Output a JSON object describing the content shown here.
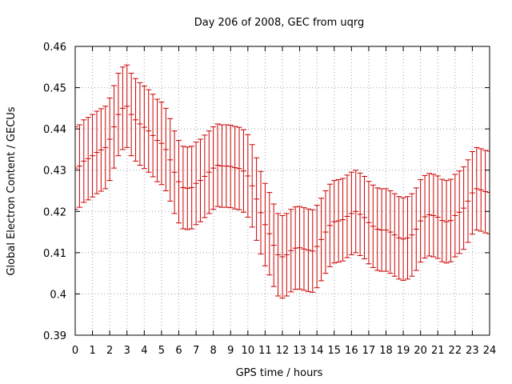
{
  "chart_data": {
    "type": "scatter",
    "title": "Day 206 of 2008, GEC from uqrg",
    "xlabel": "GPS time / hours",
    "ylabel": "Global Electron Content / GECUs",
    "xlim": [
      0,
      24
    ],
    "ylim": [
      0.39,
      0.46
    ],
    "xticks": [
      0,
      1,
      2,
      3,
      4,
      5,
      6,
      7,
      8,
      9,
      10,
      11,
      12,
      13,
      14,
      15,
      16,
      17,
      18,
      19,
      20,
      21,
      22,
      23,
      24
    ],
    "yticks": [
      0.39,
      0.4,
      0.41,
      0.42,
      0.43,
      0.44,
      0.45,
      0.46
    ],
    "ytick_labels": [
      "0.39",
      "0.4",
      "0.41",
      "0.42",
      "0.43",
      "0.44",
      "0.45",
      "0.46"
    ],
    "grid": true,
    "error_bar": 0.01,
    "color": "#cc0000",
    "series": [
      {
        "x": [
          0,
          0.25,
          0.5,
          0.75,
          1,
          1.25,
          1.5,
          1.75,
          2,
          2.25,
          2.5,
          2.75,
          3,
          3.25,
          3.5,
          3.75,
          4,
          4.25,
          4.5,
          4.75,
          5,
          5.25,
          5.5,
          5.75,
          6,
          6.25,
          6.5,
          6.75,
          7,
          7.25,
          7.5,
          7.75,
          8,
          8.25,
          8.5,
          8.75,
          9,
          9.25,
          9.5,
          9.75,
          10,
          10.25,
          10.5,
          10.75,
          11,
          11.25,
          11.5,
          11.75,
          12,
          12.25,
          12.5,
          12.75,
          13,
          13.25,
          13.5,
          13.75,
          14,
          14.25,
          14.5,
          14.75,
          15,
          15.25,
          15.5,
          15.75,
          16,
          16.25,
          16.5,
          16.75,
          17,
          17.25,
          17.5,
          17.75,
          18,
          18.25,
          18.5,
          18.75,
          19,
          19.25,
          19.5,
          19.75,
          20,
          20.25,
          20.5,
          20.75,
          21,
          21.25,
          21.5,
          21.75,
          22,
          22.25,
          22.5,
          22.75,
          23,
          23.25,
          23.5,
          23.75,
          24
        ],
        "y": [
          0.4305,
          0.431,
          0.4322,
          0.4328,
          0.4335,
          0.4343,
          0.4349,
          0.4355,
          0.4375,
          0.4405,
          0.4435,
          0.445,
          0.4455,
          0.4435,
          0.4422,
          0.4412,
          0.4404,
          0.4395,
          0.4384,
          0.4372,
          0.4365,
          0.435,
          0.4325,
          0.4295,
          0.4272,
          0.4258,
          0.4256,
          0.4258,
          0.4268,
          0.4275,
          0.4285,
          0.4295,
          0.4305,
          0.4312,
          0.431,
          0.431,
          0.4309,
          0.4306,
          0.4304,
          0.4298,
          0.4286,
          0.4262,
          0.423,
          0.4197,
          0.4168,
          0.4146,
          0.4118,
          0.4095,
          0.409,
          0.4095,
          0.4105,
          0.4111,
          0.4112,
          0.4109,
          0.4106,
          0.4104,
          0.4115,
          0.4132,
          0.415,
          0.4166,
          0.4175,
          0.4177,
          0.418,
          0.4188,
          0.4195,
          0.42,
          0.4193,
          0.4185,
          0.4173,
          0.4164,
          0.4157,
          0.4155,
          0.4155,
          0.415,
          0.4143,
          0.4136,
          0.4133,
          0.4136,
          0.4143,
          0.4157,
          0.4177,
          0.4187,
          0.4192,
          0.419,
          0.4186,
          0.4178,
          0.4175,
          0.4178,
          0.419,
          0.4198,
          0.4208,
          0.4225,
          0.4245,
          0.4255,
          0.4252,
          0.4248,
          0.4246
        ]
      }
    ]
  }
}
